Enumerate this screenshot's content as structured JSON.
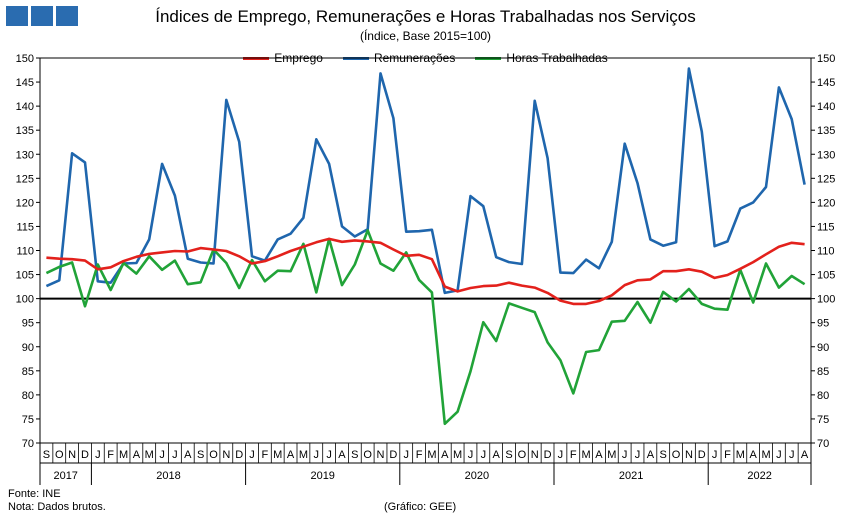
{
  "header": {
    "title": "Índices de Emprego, Remunerações e Horas Trabalhadas nos Serviços",
    "subtitle": "(Índice, Base 2015=100)"
  },
  "footer": {
    "source": "Fonte: INE",
    "note": "Nota: Dados brutos.",
    "credit": "(Gráfico: GEE)"
  },
  "chart_data": {
    "type": "line",
    "y_ticks": [
      70,
      75,
      80,
      85,
      90,
      95,
      100,
      105,
      110,
      115,
      120,
      125,
      130,
      135,
      140,
      145,
      150
    ],
    "ylim": [
      70,
      150
    ],
    "reference_line": 100,
    "grid": false,
    "legend_position": "top-center",
    "x": [
      "S",
      "O",
      "N",
      "D",
      "J",
      "F",
      "M",
      "A",
      "M",
      "J",
      "J",
      "A",
      "S",
      "O",
      "N",
      "D",
      "J",
      "F",
      "M",
      "A",
      "M",
      "J",
      "J",
      "A",
      "S",
      "O",
      "N",
      "D",
      "J",
      "F",
      "M",
      "A",
      "M",
      "J",
      "J",
      "A",
      "S",
      "O",
      "N",
      "D",
      "J",
      "F",
      "M",
      "A",
      "M",
      "J",
      "J",
      "A",
      "S",
      "O",
      "N",
      "D",
      "J",
      "F",
      "M",
      "A",
      "M",
      "J",
      "J",
      "A"
    ],
    "years": [
      {
        "label": "2017",
        "count": 4
      },
      {
        "label": "2018",
        "count": 12
      },
      {
        "label": "2019",
        "count": 12
      },
      {
        "label": "2020",
        "count": 12
      },
      {
        "label": "2021",
        "count": 12
      },
      {
        "label": "2022",
        "count": 8
      }
    ],
    "series": [
      {
        "name": "Emprego",
        "color": "#e3211c",
        "values": [
          108.5,
          108.3,
          108.2,
          107.9,
          106.1,
          106.5,
          107.8,
          108.7,
          109.3,
          109.6,
          109.9,
          109.8,
          110.5,
          110.2,
          109.9,
          108.8,
          107.3,
          107.8,
          108.8,
          109.9,
          110.8,
          111.7,
          112.4,
          111.8,
          112.1,
          111.9,
          111.6,
          110.2,
          108.9,
          109.1,
          108.2,
          102.5,
          101.5,
          102.2,
          102.6,
          102.7,
          103.3,
          102.7,
          102.3,
          101.2,
          99.6,
          98.9,
          98.9,
          99.5,
          100.7,
          102.8,
          103.8,
          104.0,
          105.7,
          105.7,
          106.1,
          105.6,
          104.3,
          104.9,
          106.2,
          107.6,
          109.2,
          110.8,
          111.6,
          111.3
        ]
      },
      {
        "name": "Remunerações",
        "color": "#1f66ad",
        "values": [
          102.6,
          103.8,
          130.2,
          128.3,
          103.6,
          103.3,
          107.3,
          107.4,
          112.3,
          128.0,
          121.4,
          108.3,
          107.5,
          107.3,
          141.3,
          132.6,
          108.8,
          107.9,
          112.3,
          113.5,
          116.8,
          133.1,
          128.0,
          115.0,
          112.9,
          114.4,
          146.8,
          137.5,
          113.9,
          114.0,
          114.3,
          101.2,
          101.7,
          121.3,
          119.2,
          108.6,
          107.6,
          107.2,
          141.1,
          129.2,
          105.4,
          105.3,
          108.1,
          106.3,
          111.8,
          132.2,
          124.0,
          112.3,
          111.0,
          111.7,
          147.8,
          134.7,
          110.9,
          111.9,
          118.7,
          120.0,
          123.2,
          143.9,
          137.3,
          123.7
        ]
      },
      {
        "name": "Horas Trabalhadas",
        "color": "#21a338",
        "values": [
          105.3,
          106.6,
          107.5,
          98.4,
          107.1,
          101.8,
          107.4,
          105.2,
          108.8,
          106.0,
          107.9,
          103.0,
          103.4,
          110.2,
          107.4,
          102.2,
          108.0,
          103.6,
          105.8,
          105.7,
          111.4,
          101.3,
          112.4,
          102.8,
          107.1,
          114.2,
          107.3,
          105.8,
          109.6,
          103.9,
          101.3,
          74.0,
          76.5,
          84.9,
          95.1,
          91.2,
          99.0,
          98.1,
          97.2,
          90.9,
          87.2,
          80.3,
          88.9,
          89.3,
          95.2,
          95.4,
          99.3,
          95.0,
          101.4,
          99.4,
          102.0,
          98.9,
          97.9,
          97.7,
          106.0,
          99.2,
          107.3,
          102.3,
          104.7,
          103.0
        ]
      }
    ]
  }
}
